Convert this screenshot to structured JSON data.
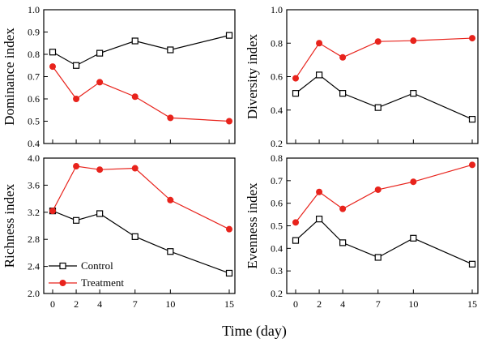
{
  "figure": {
    "xlabel": "Time (day)",
    "colors": {
      "control": "#000000",
      "treatment": "#e8231c"
    }
  },
  "legend": {
    "control": "Control",
    "treatment": "Treatment"
  },
  "chart_data": [
    {
      "type": "line",
      "ylabel": "Dominance index",
      "x": [
        0,
        2,
        4,
        7,
        10,
        15
      ],
      "xticks": [
        "0",
        "2",
        "4",
        "7",
        "10",
        "15"
      ],
      "ylim": [
        0.4,
        1.0
      ],
      "yticks": [
        "0.4",
        "0.5",
        "0.6",
        "0.7",
        "0.8",
        "0.9",
        "1.0"
      ],
      "series": [
        {
          "name": "Control",
          "values": [
            0.81,
            0.75,
            0.805,
            0.86,
            0.82,
            0.885
          ]
        },
        {
          "name": "Treatment",
          "values": [
            0.745,
            0.6,
            0.675,
            0.61,
            0.515,
            0.5
          ]
        }
      ]
    },
    {
      "type": "line",
      "ylabel": "Diversity index",
      "x": [
        0,
        2,
        4,
        7,
        10,
        15
      ],
      "xticks": [
        "0",
        "2",
        "4",
        "7",
        "10",
        "15"
      ],
      "ylim": [
        0.2,
        1.0
      ],
      "yticks": [
        "0.2",
        "0.4",
        "0.6",
        "0.8",
        "1.0"
      ],
      "series": [
        {
          "name": "Control",
          "values": [
            0.5,
            0.61,
            0.5,
            0.415,
            0.5,
            0.345
          ]
        },
        {
          "name": "Treatment",
          "values": [
            0.59,
            0.8,
            0.715,
            0.81,
            0.815,
            0.83
          ]
        }
      ]
    },
    {
      "type": "line",
      "ylabel": "Richness index",
      "x": [
        0,
        2,
        4,
        7,
        10,
        15
      ],
      "xticks": [
        "0",
        "2",
        "4",
        "7",
        "10",
        "15"
      ],
      "ylim": [
        2.0,
        4.0
      ],
      "yticks": [
        "2.0",
        "2.4",
        "2.8",
        "3.2",
        "3.6",
        "4.0"
      ],
      "series": [
        {
          "name": "Control",
          "values": [
            3.22,
            3.08,
            3.18,
            2.84,
            2.62,
            2.3
          ]
        },
        {
          "name": "Treatment",
          "values": [
            3.22,
            3.88,
            3.83,
            3.85,
            3.38,
            2.95
          ]
        }
      ]
    },
    {
      "type": "line",
      "ylabel": "Evenness index",
      "x": [
        0,
        2,
        4,
        7,
        10,
        15
      ],
      "xticks": [
        "0",
        "2",
        "4",
        "7",
        "10",
        "15"
      ],
      "ylim": [
        0.2,
        0.8
      ],
      "yticks": [
        "0.2",
        "0.3",
        "0.4",
        "0.5",
        "0.6",
        "0.7",
        "0.8"
      ],
      "series": [
        {
          "name": "Control",
          "values": [
            0.435,
            0.53,
            0.425,
            0.36,
            0.445,
            0.33
          ]
        },
        {
          "name": "Treatment",
          "values": [
            0.515,
            0.65,
            0.575,
            0.66,
            0.695,
            0.77
          ]
        }
      ]
    }
  ]
}
